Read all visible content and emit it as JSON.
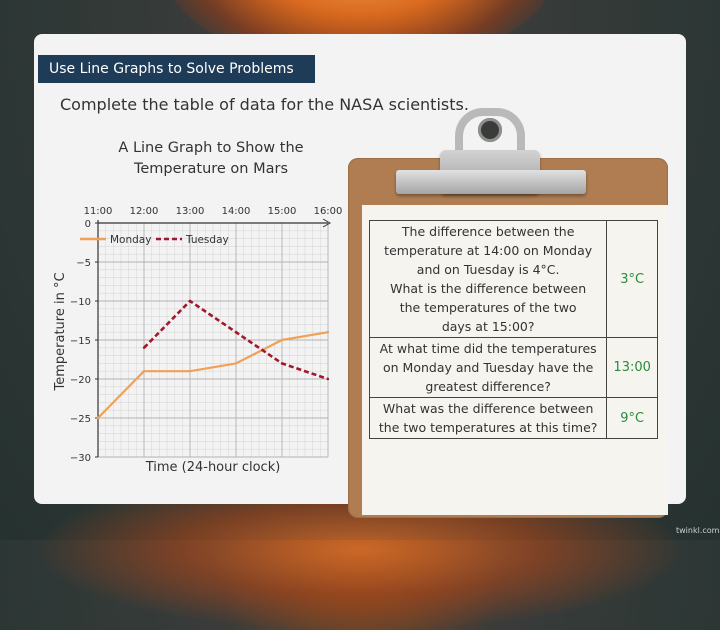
{
  "banner": {
    "title": "Use Line Graphs to Solve Problems"
  },
  "instruction": "Complete the table of data for the NASA scientists.",
  "chart_data": {
    "type": "line",
    "title_lines": [
      "A Line Graph to Show the",
      "Temperature on Mars"
    ],
    "xlabel": "Time (24-hour clock)",
    "ylabel": "Temperature in °C",
    "x_ticks": [
      "11:00",
      "12:00",
      "13:00",
      "14:00",
      "15:00",
      "16:00"
    ],
    "y_ticks": [
      0,
      -5,
      -10,
      -15,
      -20,
      -25,
      -30
    ],
    "y_tick_labels": [
      "0",
      "−5",
      "−10",
      "−15",
      "−20",
      "−25",
      "−30"
    ],
    "ylim": [
      -30,
      0
    ],
    "xlim_hours": [
      11,
      16
    ],
    "grid": true,
    "legend_position": "top",
    "series": [
      {
        "name": "Monday",
        "color": "#f0a057",
        "style": "solid",
        "points": [
          {
            "x": "11:00",
            "y": -25
          },
          {
            "x": "12:00",
            "y": -19
          },
          {
            "x": "13:00",
            "y": -19
          },
          {
            "x": "14:00",
            "y": -18
          },
          {
            "x": "15:00",
            "y": -15
          },
          {
            "x": "16:00",
            "y": -14
          }
        ]
      },
      {
        "name": "Tuesday",
        "color": "#a4162e",
        "style": "dashed",
        "points": [
          {
            "x": "12:00",
            "y": -16
          },
          {
            "x": "13:00",
            "y": -10
          },
          {
            "x": "14:00",
            "y": -14
          },
          {
            "x": "15:00",
            "y": -18
          },
          {
            "x": "16:00",
            "y": -20
          }
        ]
      }
    ]
  },
  "table": {
    "rows": [
      {
        "question_lines": [
          "The difference between the",
          "temperature at 14:00 on Monday",
          "and on Tuesday is 4°C.",
          "What is the difference between",
          "the temperatures of the two",
          "days at 15:00?"
        ],
        "answer": "3°C"
      },
      {
        "question_lines": [
          "At what time did the temperatures",
          "on Monday and Tuesday have the",
          "greatest difference?"
        ],
        "answer": "13:00"
      },
      {
        "question_lines": [
          "What was the difference between",
          "the two temperatures at this time?"
        ],
        "answer": "9°C"
      }
    ]
  },
  "watermark": "twinkl.com"
}
